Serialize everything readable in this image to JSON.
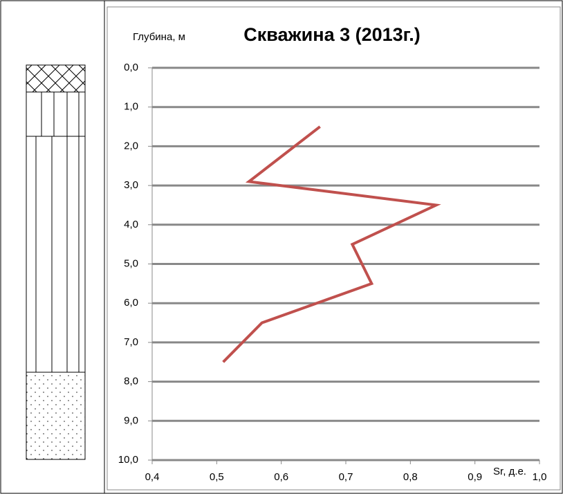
{
  "chart_data": {
    "type": "line",
    "title": "Скважина 3 (2013г.)",
    "y_label": "Глубина, м",
    "x_label": "Sr, д.е.",
    "x": [
      0.66,
      0.55,
      0.84,
      0.71,
      0.74,
      0.57,
      0.51
    ],
    "values": [
      1.5,
      2.9,
      3.5,
      4.5,
      5.5,
      6.5,
      7.5
    ],
    "color": "#c0504d",
    "xlim": [
      0.4,
      1.0
    ],
    "xticks": [
      {
        "value": 0.4,
        "label": "0,4"
      },
      {
        "value": 0.5,
        "label": "0,5"
      },
      {
        "value": 0.6,
        "label": "0,6"
      },
      {
        "value": 0.7,
        "label": "0,7"
      },
      {
        "value": 0.8,
        "label": "0,8"
      },
      {
        "value": 0.9,
        "label": "0,9"
      },
      {
        "value": 1.0,
        "label": "1,0"
      }
    ],
    "ylim": [
      0,
      10
    ],
    "y_inverted": true,
    "yticks": [
      {
        "value": 0,
        "label": "0,0"
      },
      {
        "value": 1,
        "label": "1,0"
      },
      {
        "value": 2,
        "label": "2,0"
      },
      {
        "value": 3,
        "label": "3,0"
      },
      {
        "value": 4,
        "label": "4,0"
      },
      {
        "value": 5,
        "label": "5,0"
      },
      {
        "value": 6,
        "label": "6,0"
      },
      {
        "value": 7,
        "label": "7,0"
      },
      {
        "value": 8,
        "label": "8,0"
      },
      {
        "value": 9,
        "label": "9,0"
      },
      {
        "value": 10,
        "label": "10,0"
      }
    ],
    "grid": true
  }
}
